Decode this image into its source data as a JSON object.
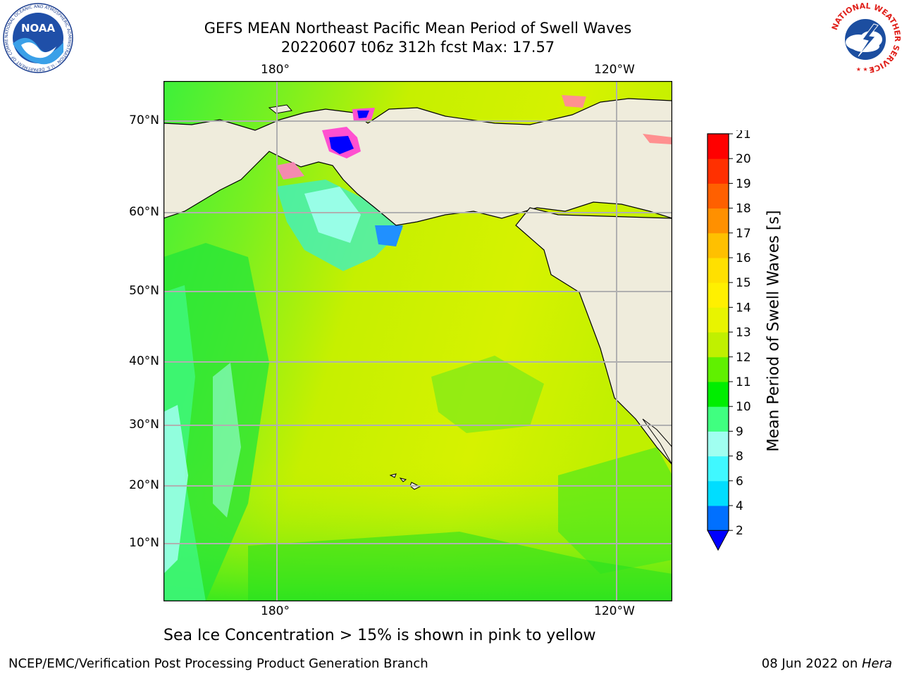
{
  "title": {
    "line1": "GEFS MEAN Northeast Pacific Mean Period of Swell Waves",
    "line2": "20220607 t06z 312h fcst   Max: 17.57"
  },
  "map": {
    "lon_labels_top": [
      "180°",
      "120°W"
    ],
    "lon_labels_bottom": [
      "180°",
      "120°W"
    ],
    "lat_labels": [
      "70°N",
      "60°N",
      "50°N",
      "40°N",
      "30°N",
      "20°N",
      "10°N"
    ],
    "land_color": "#efecdc",
    "grid_color": "#b0b0b0"
  },
  "colorbar": {
    "title": "Mean Period of Swell Waves [s]",
    "ticks": [
      "2",
      "4",
      "6",
      "8",
      "9",
      "10",
      "11",
      "12",
      "13",
      "14",
      "15",
      "16",
      "17",
      "18",
      "19",
      "20",
      "21"
    ],
    "colors": [
      "#0070ff",
      "#00ddff",
      "#40f8ff",
      "#a0fff0",
      "#40ff80",
      "#00ee00",
      "#60f000",
      "#c0f000",
      "#e8f400",
      "#fff000",
      "#ffe000",
      "#ffc000",
      "#ff9000",
      "#ff6000",
      "#ff3000",
      "#ff0000"
    ],
    "under_color": "#0000ff"
  },
  "note": "Sea Ice Concentration > 15% is shown in pink to yellow",
  "footer": {
    "left": "NCEP/EMC/Verification Post Processing Product Generation Branch",
    "right_date": "08 Jun 2022 on ",
    "right_host": "Hera"
  },
  "logos": {
    "noaa": "NOAA",
    "noaa_ring": "NATIONAL OCEANIC AND ATMOSPHERIC ADMINISTRATION · U.S. DEPARTMENT OF COMMERCE",
    "nws_ring": "NATIONAL WEATHER SERVICE"
  }
}
